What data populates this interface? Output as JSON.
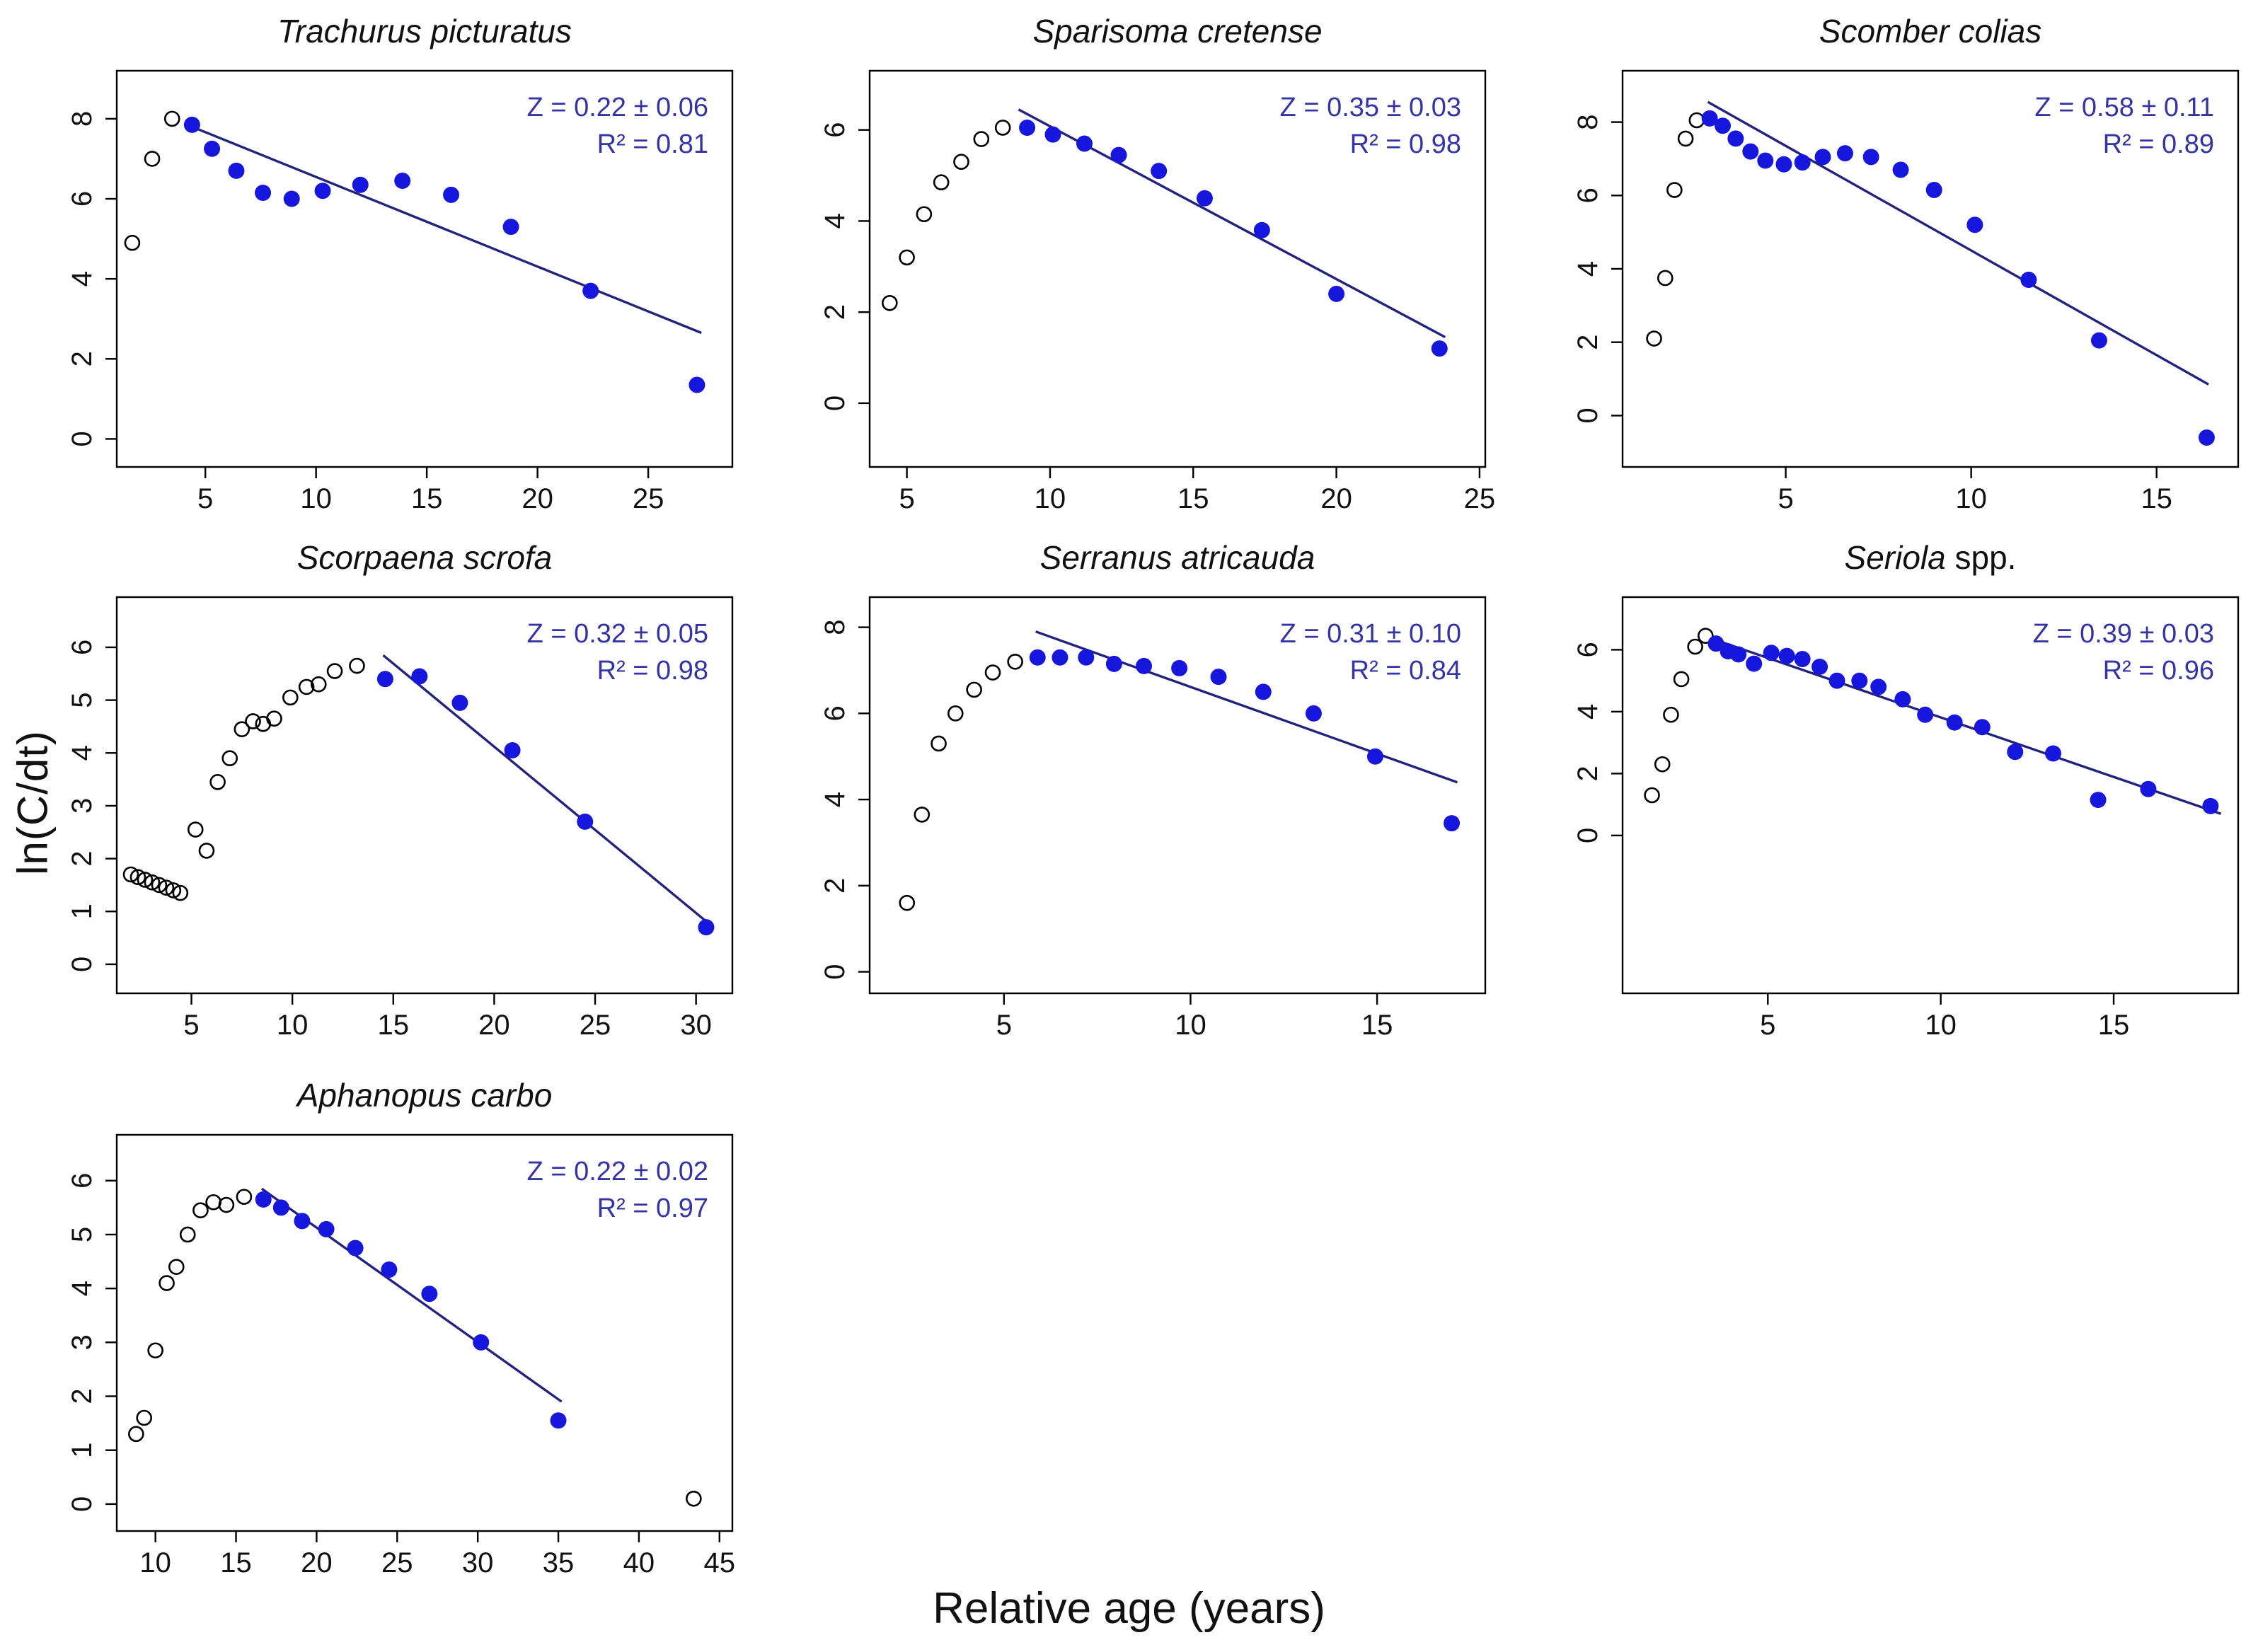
{
  "figure": {
    "ylabel": "ln(C/dt)",
    "xlabel": "Relative age (years)",
    "colors": {
      "included_point": "#1616dd",
      "excluded_point_stroke": "#000000",
      "regression_line": "#23237e",
      "annotation_text": "#3434a4",
      "axis_and_text": "#111111",
      "background": "#ffffff"
    }
  },
  "chart_data": [
    {
      "type": "scatter",
      "title": "Trachurus picturatus",
      "title_suffix": "",
      "annotation": {
        "z": "Z = 0.22 ± 0.06",
        "r2": "R² = 0.81"
      },
      "xlim": [
        1.0,
        28.8
      ],
      "ylim": [
        -0.7,
        9.2
      ],
      "xticks": [
        5,
        10,
        15,
        20,
        25
      ],
      "yticks": [
        0,
        2,
        4,
        6,
        8
      ],
      "regression_line": {
        "x": [
          4.4,
          27.4
        ],
        "y": [
          7.8,
          2.65
        ]
      },
      "excluded_points_open": [
        [
          1.7,
          4.9
        ],
        [
          2.6,
          7.0
        ],
        [
          3.5,
          8.0
        ]
      ],
      "included_points_filled": [
        [
          4.4,
          7.85
        ],
        [
          5.3,
          7.25
        ],
        [
          6.4,
          6.7
        ],
        [
          7.6,
          6.15
        ],
        [
          8.9,
          6.0
        ],
        [
          10.3,
          6.2
        ],
        [
          12.0,
          6.35
        ],
        [
          13.9,
          6.45
        ],
        [
          16.1,
          6.1
        ],
        [
          18.8,
          5.3
        ],
        [
          22.4,
          3.7
        ],
        [
          27.2,
          1.35
        ]
      ]
    },
    {
      "type": "scatter",
      "title": "Sparisoma cretense",
      "title_suffix": "",
      "annotation": {
        "z": "Z = 0.35 ± 0.03",
        "r2": "R² = 0.98"
      },
      "xlim": [
        3.7,
        25.2
      ],
      "ylim": [
        -1.4,
        7.3
      ],
      "xticks": [
        5,
        10,
        15,
        20,
        25
      ],
      "yticks": [
        0,
        2,
        4,
        6
      ],
      "regression_line": {
        "x": [
          8.9,
          23.8
        ],
        "y": [
          6.45,
          1.45
        ]
      },
      "excluded_points_open": [
        [
          4.4,
          2.2
        ],
        [
          5.0,
          3.2
        ],
        [
          5.6,
          4.15
        ],
        [
          6.2,
          4.85
        ],
        [
          6.9,
          5.3
        ],
        [
          7.6,
          5.8
        ],
        [
          8.35,
          6.05
        ]
      ],
      "included_points_filled": [
        [
          9.2,
          6.05
        ],
        [
          10.1,
          5.9
        ],
        [
          11.2,
          5.7
        ],
        [
          12.4,
          5.45
        ],
        [
          13.8,
          5.1
        ],
        [
          15.4,
          4.5
        ],
        [
          17.4,
          3.8
        ],
        [
          20.0,
          2.4
        ],
        [
          23.6,
          1.2
        ]
      ]
    },
    {
      "type": "scatter",
      "title": "Scomber colias",
      "title_suffix": "",
      "annotation": {
        "z": "Z = 0.58 ± 0.11",
        "r2": "R² = 0.89"
      },
      "xlim": [
        0.6,
        17.2
      ],
      "ylim": [
        -1.4,
        9.4
      ],
      "xticks": [
        5,
        10,
        15
      ],
      "yticks": [
        0,
        2,
        4,
        6,
        8
      ],
      "regression_line": {
        "x": [
          2.9,
          16.4
        ],
        "y": [
          8.55,
          0.85
        ]
      },
      "excluded_points_open": [
        [
          1.45,
          2.1
        ],
        [
          1.75,
          3.75
        ],
        [
          2.0,
          6.15
        ],
        [
          2.3,
          7.55
        ],
        [
          2.6,
          8.05
        ]
      ],
      "included_points_filled": [
        [
          2.95,
          8.1
        ],
        [
          3.3,
          7.9
        ],
        [
          3.65,
          7.55
        ],
        [
          4.05,
          7.2
        ],
        [
          4.45,
          6.95
        ],
        [
          4.95,
          6.85
        ],
        [
          5.45,
          6.9
        ],
        [
          6.0,
          7.05
        ],
        [
          6.6,
          7.15
        ],
        [
          7.3,
          7.05
        ],
        [
          8.1,
          6.7
        ],
        [
          9.0,
          6.15
        ],
        [
          10.1,
          5.2
        ],
        [
          11.55,
          3.7
        ],
        [
          13.45,
          2.05
        ],
        [
          16.35,
          -0.6
        ]
      ]
    },
    {
      "type": "scatter",
      "title": "Scorpaena scrofa",
      "title_suffix": "",
      "annotation": {
        "z": "Z = 0.32 ± 0.05",
        "r2": "R² = 0.98"
      },
      "xlim": [
        1.3,
        31.8
      ],
      "ylim": [
        -0.55,
        6.95
      ],
      "xticks": [
        5,
        10,
        15,
        20,
        25,
        30
      ],
      "yticks": [
        0,
        1,
        2,
        3,
        4,
        5,
        6
      ],
      "regression_line": {
        "x": [
          14.5,
          30.7
        ],
        "y": [
          5.85,
          0.75
        ]
      },
      "excluded_points_open": [
        [
          2.0,
          1.7
        ],
        [
          2.35,
          1.65
        ],
        [
          2.7,
          1.6
        ],
        [
          3.05,
          1.55
        ],
        [
          3.4,
          1.5
        ],
        [
          3.75,
          1.45
        ],
        [
          4.1,
          1.4
        ],
        [
          4.45,
          1.35
        ],
        [
          5.2,
          2.55
        ],
        [
          5.75,
          2.15
        ],
        [
          6.3,
          3.45
        ],
        [
          6.9,
          3.9
        ],
        [
          7.5,
          4.45
        ],
        [
          8.05,
          4.6
        ],
        [
          8.55,
          4.55
        ],
        [
          9.1,
          4.65
        ],
        [
          9.9,
          5.05
        ],
        [
          10.7,
          5.25
        ],
        [
          11.3,
          5.3
        ],
        [
          12.1,
          5.55
        ],
        [
          13.2,
          5.65
        ]
      ],
      "included_points_filled": [
        [
          14.6,
          5.4
        ],
        [
          16.3,
          5.45
        ],
        [
          18.3,
          4.95
        ],
        [
          20.9,
          4.05
        ],
        [
          24.5,
          2.7
        ],
        [
          30.5,
          0.7
        ]
      ]
    },
    {
      "type": "scatter",
      "title": "Serranus atricauda",
      "title_suffix": "",
      "annotation": {
        "z": "Z = 0.31 ± 0.10",
        "r2": "R² = 0.84"
      },
      "xlim": [
        1.4,
        17.9
      ],
      "ylim": [
        -0.5,
        8.7
      ],
      "xticks": [
        5,
        10,
        15
      ],
      "yticks": [
        0,
        2,
        4,
        6,
        8
      ],
      "regression_line": {
        "x": [
          5.85,
          17.15
        ],
        "y": [
          7.9,
          4.4
        ]
      },
      "excluded_points_open": [
        [
          2.4,
          1.6
        ],
        [
          2.8,
          3.65
        ],
        [
          3.25,
          5.3
        ],
        [
          3.7,
          6.0
        ],
        [
          4.2,
          6.55
        ],
        [
          4.7,
          6.95
        ],
        [
          5.3,
          7.2
        ]
      ],
      "included_points_filled": [
        [
          5.9,
          7.3
        ],
        [
          6.5,
          7.3
        ],
        [
          7.2,
          7.3
        ],
        [
          7.95,
          7.15
        ],
        [
          8.75,
          7.1
        ],
        [
          9.7,
          7.05
        ],
        [
          10.75,
          6.85
        ],
        [
          11.95,
          6.5
        ],
        [
          13.3,
          6.0
        ],
        [
          14.95,
          5.0
        ],
        [
          17.0,
          3.45
        ]
      ]
    },
    {
      "type": "scatter",
      "title": "Seriola",
      "title_suffix": " spp.",
      "annotation": {
        "z": "Z = 0.39 ± 0.03",
        "r2": "R² = 0.96"
      },
      "xlim": [
        0.8,
        18.6
      ],
      "ylim": [
        -5.1,
        7.7
      ],
      "xticks": [
        5,
        10,
        15
      ],
      "yticks": [
        0,
        2,
        4,
        6
      ],
      "regression_line": {
        "x": [
          3.4,
          18.1
        ],
        "y": [
          6.35,
          0.7
        ]
      },
      "excluded_points_open": [
        [
          1.65,
          1.3
        ],
        [
          1.95,
          2.3
        ],
        [
          2.2,
          3.9
        ],
        [
          2.5,
          5.05
        ],
        [
          2.9,
          6.1
        ],
        [
          3.2,
          6.45
        ]
      ],
      "included_points_filled": [
        [
          3.5,
          6.2
        ],
        [
          3.85,
          5.95
        ],
        [
          4.15,
          5.85
        ],
        [
          4.6,
          5.55
        ],
        [
          5.1,
          5.9
        ],
        [
          5.55,
          5.8
        ],
        [
          6.0,
          5.7
        ],
        [
          6.5,
          5.45
        ],
        [
          7.0,
          5.0
        ],
        [
          7.65,
          5.0
        ],
        [
          8.2,
          4.8
        ],
        [
          8.9,
          4.4
        ],
        [
          9.55,
          3.9
        ],
        [
          10.4,
          3.65
        ],
        [
          11.2,
          3.5
        ],
        [
          12.15,
          2.7
        ],
        [
          13.25,
          2.65
        ],
        [
          14.55,
          1.15
        ],
        [
          16.0,
          1.5
        ],
        [
          17.8,
          0.95
        ]
      ]
    },
    {
      "type": "scatter",
      "title": "Aphanopus carbo",
      "title_suffix": "",
      "annotation": {
        "z": "Z = 0.22 ± 0.02",
        "r2": "R² = 0.97"
      },
      "xlim": [
        7.6,
        45.8
      ],
      "ylim": [
        -0.5,
        6.85
      ],
      "xticks": [
        10,
        15,
        20,
        25,
        30,
        35,
        40,
        45
      ],
      "yticks": [
        0,
        1,
        2,
        3,
        4,
        5,
        6
      ],
      "regression_line": {
        "x": [
          16.6,
          35.2
        ],
        "y": [
          5.85,
          1.9
        ]
      },
      "excluded_points_open": [
        [
          8.8,
          1.3
        ],
        [
          9.3,
          1.6
        ],
        [
          10.0,
          2.85
        ],
        [
          10.7,
          4.1
        ],
        [
          11.3,
          4.4
        ],
        [
          12.0,
          5.0
        ],
        [
          12.8,
          5.45
        ],
        [
          13.6,
          5.6
        ],
        [
          14.4,
          5.55
        ],
        [
          15.5,
          5.7
        ],
        [
          43.4,
          0.1
        ]
      ],
      "included_points_filled": [
        [
          16.7,
          5.65
        ],
        [
          17.8,
          5.5
        ],
        [
          19.1,
          5.25
        ],
        [
          20.6,
          5.1
        ],
        [
          22.4,
          4.75
        ],
        [
          24.5,
          4.35
        ],
        [
          27.0,
          3.9
        ],
        [
          30.2,
          3.0
        ],
        [
          35.0,
          1.55
        ]
      ]
    }
  ]
}
